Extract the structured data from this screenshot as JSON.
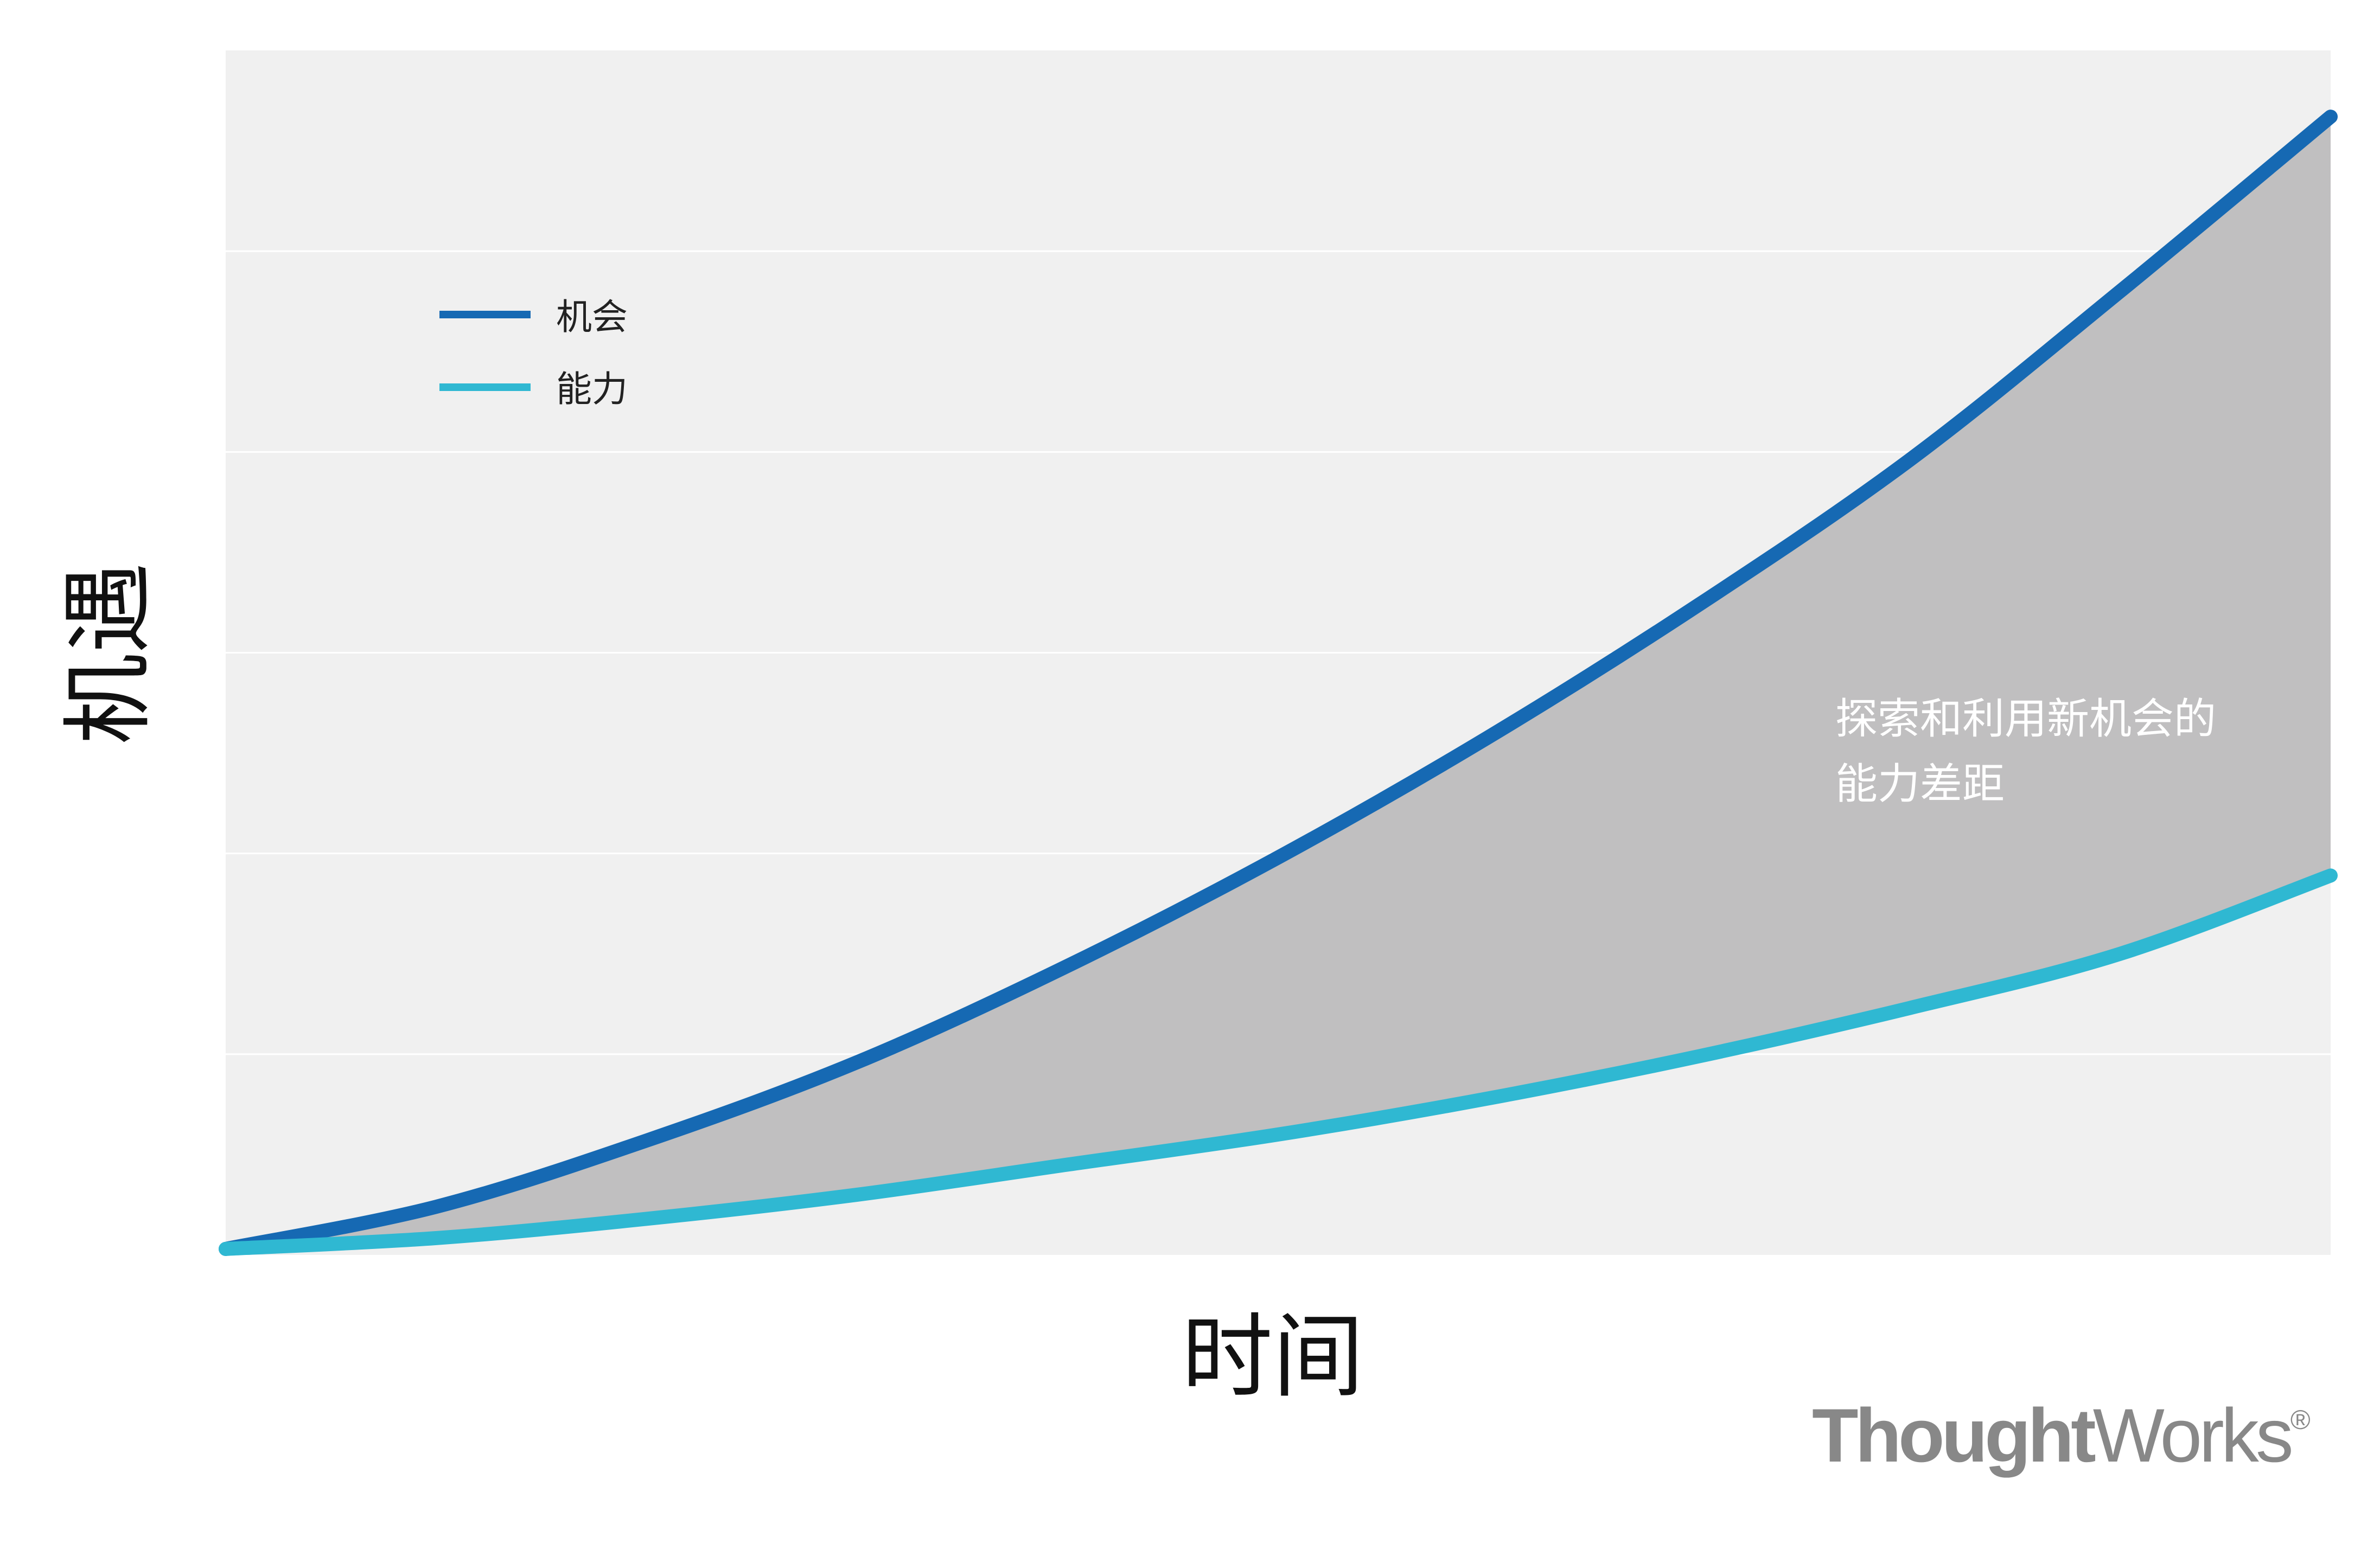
{
  "chart_data": {
    "type": "line",
    "title": "",
    "xlabel": "时间",
    "ylabel": "机遇",
    "x": [
      0,
      0.1,
      0.2,
      0.3,
      0.4,
      0.5,
      0.6,
      0.7,
      0.8,
      0.9,
      1.0
    ],
    "series": [
      {
        "name": "机会",
        "color": "#1669b3",
        "values": [
          0.005,
          0.04,
          0.095,
          0.16,
          0.24,
          0.33,
          0.43,
          0.54,
          0.66,
          0.8,
          0.945
        ]
      },
      {
        "name": "能力",
        "color": "#2fb8d2",
        "values": [
          0.005,
          0.014,
          0.03,
          0.05,
          0.075,
          0.1,
          0.13,
          0.165,
          0.205,
          0.25,
          0.315
        ]
      }
    ],
    "xlim": [
      0,
      1
    ],
    "ylim": [
      0,
      1
    ],
    "grid": true,
    "legend_position": "top-left",
    "shaded_area": {
      "between": [
        "机会",
        "能力"
      ],
      "color": "#c0bfc0"
    },
    "annotation": [
      "探索和利用新机会的",
      "能力差距"
    ]
  },
  "logo": {
    "text_strong": "Thought",
    "text_light": "Works",
    "mark": "®"
  },
  "colors": {
    "plot_background": "#f0f0f0",
    "gridline": "#ffffff"
  }
}
